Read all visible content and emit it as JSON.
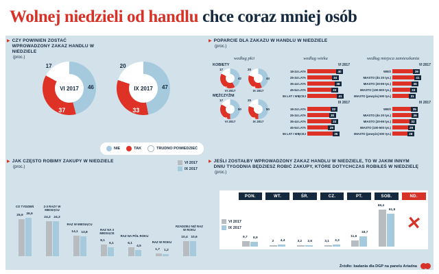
{
  "title": {
    "highlight": "Wolnej niedzieli od handlu",
    "rest": " chce coraz mniej osób"
  },
  "colors": {
    "red": "#de3226",
    "navy": "#15293e",
    "light_blue": "#a5cadd",
    "gray": "#b7bcc0",
    "background": "#d2e1ea"
  },
  "legend_main": [
    {
      "label": "NIE",
      "color": "#a5cadd",
      "border": false
    },
    {
      "label": "TAK",
      "color": "#de3226",
      "border": false
    },
    {
      "label": "TRUDNO POWIEDZIEĆ",
      "color": "#ffffff",
      "border": true
    }
  ],
  "series_legend": [
    {
      "label": "VI 2017",
      "color": "#b7bcc0"
    },
    {
      "label": "IX 2017",
      "color": "#a5cadd"
    }
  ],
  "panel_ban": {
    "heading": "CZY POWINIEN ZOSTAĆ WPROWADZONY ZAKAZ HANDLU W NIEDZIELE",
    "unit": "(proc.)"
  },
  "panel_support": {
    "heading": "POPARCIE DLA ZAKAZU W HANDLU W NIEDZIELE",
    "unit": "(proc.)",
    "by_gender_title": "według płci",
    "by_age_title": "według wieku",
    "by_residence_title": "według miejsca zamieszkania"
  },
  "panel_frequency": {
    "heading": "JAK CZĘSTO ROBIMY ZAKUPY W NIEDZIELE",
    "unit": "(proc.)"
  },
  "panel_day": {
    "heading": "JEŚLI ZOSTAŁBY WPROWADZONY ZAKAZ HANDLU W NIEDZIELE, TO W JAKIM INNYM DNIU TYGODNIA BĘDZIESZ ROBIĆ ZAKUPY, KTÓRE DOTYCHCZAS ROBIŁEŚ W NIEDZIELĘ",
    "unit": "(proc.)"
  },
  "footer": {
    "source": "Źródło: badania dla DGP na panelu Ariadna"
  },
  "chart_data": [
    {
      "type": "pie",
      "title": "CZY POWINIEN ZOSTAĆ WPROWADZONY ZAKAZ HANDLU W NIEDZIELE (proc.)",
      "labels": [
        "NIE",
        "TAK",
        "TRUDNO POWIEDZIEĆ"
      ],
      "series": [
        {
          "name": "VI 2017",
          "values": [
            46,
            37,
            17
          ]
        },
        {
          "name": "IX 2017",
          "values": [
            47,
            33,
            20
          ]
        }
      ]
    },
    {
      "type": "pie",
      "title": "POPARCIE DLA ZAKAZU W HANDLU W NIEDZIELE — według płci (proc.)",
      "labels": [
        "NIE",
        "TAK",
        "TRUDNO POWIEDZIEĆ"
      ],
      "groups": [
        {
          "label": "KOBIETY",
          "series": [
            {
              "name": "VI 2017",
              "values": [
                42,
                41,
                17
              ]
            },
            {
              "name": "IX 2017",
              "values": [
                44,
                36,
                20
              ]
            }
          ]
        },
        {
          "label": "MĘŻCZYŹNI",
          "series": [
            {
              "name": "VI 2017",
              "values": [
                50,
                33,
                17
              ]
            },
            {
              "name": "IX 2017",
              "values": [
                50,
                30,
                20
              ]
            }
          ]
        }
      ]
    },
    {
      "type": "bar",
      "orientation": "horizontal",
      "title": "POPARCIE DLA ZAKAZU W HANDLU W NIEDZIELE — według wieku (proc.)",
      "groups": [
        {
          "name": "VI 2017",
          "categories": [
            "18-24 LATA",
            "25-34 LATA",
            "35-44 LATA",
            "45-54 LATA",
            "55 LAT I WIĘCEJ"
          ],
          "values": [
            40,
            34,
            38,
            33,
            41
          ]
        },
        {
          "name": "IX 2017",
          "categories": [
            "18-24 LATA",
            "25-34 LATA",
            "35-44 LATA",
            "45-54 LATA",
            "55 LAT I WIĘCEJ"
          ],
          "values": [
            32,
            30,
            33,
            29,
            35
          ]
        }
      ]
    },
    {
      "type": "bar",
      "orientation": "horizontal",
      "title": "POPARCIE DLA ZAKAZU W HANDLU W NIEDZIELE — według miejsca zamieszkania (proc.)",
      "groups": [
        {
          "name": "VI 2017",
          "categories": [
            "WIEŚ",
            "MIASTO (do 20 tys.)",
            "MIASTO (20-99 tys.)",
            "MIASTO (100-500 tys.)",
            "MIASTO (powyżej 500 tys.)"
          ],
          "values": [
            39,
            41,
            36,
            33,
            31
          ]
        },
        {
          "name": "IX 2017",
          "categories": [
            "WIEŚ",
            "MIASTO (do 20 tys.)",
            "MIASTO (20-99 tys.)",
            "MIASTO (100-500 tys.)",
            "MIASTO (powyżej 500 tys.)"
          ],
          "values": [
            35,
            36,
            32,
            29,
            28
          ]
        }
      ]
    },
    {
      "type": "bar",
      "title": "JAK CZĘSTO ROBIMY ZAKUPY W NIEDZIELE (proc.)",
      "categories": [
        "CO TYDZIEŃ",
        "2-3 RAZY W MIESIĄCU",
        "RAZ W MIESIĄCU",
        "RAZ NA 3 MIESIĄCE",
        "RAZ NA PÓŁ ROKU",
        "RAZ W ROKU",
        "RZADZIEJ NIŻ RAZ W ROKU"
      ],
      "series": [
        {
          "name": "VI 2017",
          "values": [
            25.9,
            24.2,
            14.1,
            8.1,
            6.1,
            1.7,
            10.4
          ]
        },
        {
          "name": "IX 2017",
          "values": [
            26.9,
            24.3,
            13.8,
            6.1,
            4.5,
            1.2,
            10.6
          ]
        }
      ]
    },
    {
      "type": "bar",
      "title": "JEŚLI ZOSTAŁBY WPROWADZONY ZAKAZ HANDLU W NIEDZIELE, TO W JAKIM INNYM DNIU TYGODNIA BĘDZIESZ ROBIĆ ZAKUPY (proc.)",
      "categories": [
        "PON.",
        "WT.",
        "ŚR.",
        "CZ.",
        "PT.",
        "SOB.",
        "ND."
      ],
      "series": [
        {
          "name": "VI 2017",
          "values": [
            9.7,
            2,
            3.2,
            3.1,
            11.6,
            69.4,
            null
          ]
        },
        {
          "name": "IX 2017",
          "values": [
            8.9,
            4.4,
            2.6,
            3.3,
            18.7,
            61.8,
            null
          ]
        }
      ],
      "nd_marker": "✕"
    }
  ]
}
